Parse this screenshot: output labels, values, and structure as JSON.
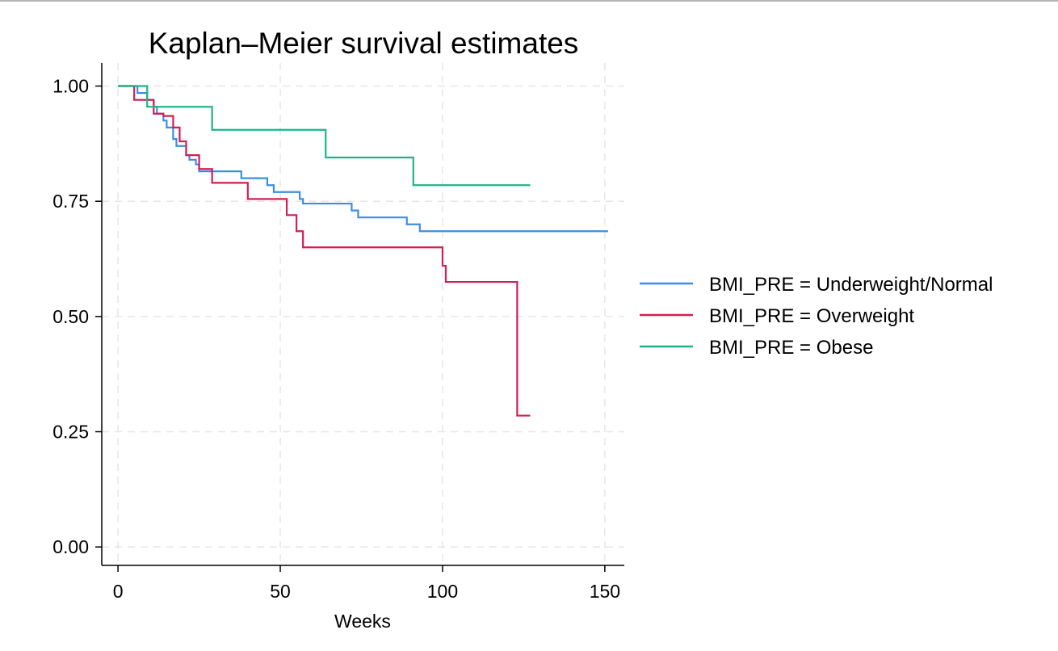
{
  "chart_data": {
    "type": "line",
    "title": "Kaplan–Meier survival estimates",
    "xlabel": "Weeks",
    "ylabel": "",
    "xlim": [
      -5,
      156
    ],
    "ylim": [
      -0.04,
      1.05
    ],
    "xticks": [
      0,
      50,
      100,
      150
    ],
    "xtick_labels": [
      "0",
      "50",
      "100",
      "150"
    ],
    "yticks": [
      0,
      0.25,
      0.5,
      0.75,
      1.0
    ],
    "ytick_labels": [
      "0.00",
      "0.25",
      "0.50",
      "0.75",
      "1.00"
    ],
    "grid": true,
    "step": true,
    "legend_position": "right",
    "series": [
      {
        "name": "BMI_PRE = Underweight/Normal",
        "color": "#3b8ee6",
        "points": [
          [
            0,
            1.0
          ],
          [
            6,
            0.985
          ],
          [
            9,
            0.97
          ],
          [
            11,
            0.955
          ],
          [
            12,
            0.94
          ],
          [
            14,
            0.925
          ],
          [
            15,
            0.91
          ],
          [
            17,
            0.885
          ],
          [
            18,
            0.87
          ],
          [
            21,
            0.85
          ],
          [
            22,
            0.84
          ],
          [
            24,
            0.83
          ],
          [
            25,
            0.815
          ],
          [
            38,
            0.8
          ],
          [
            46,
            0.785
          ],
          [
            48,
            0.77
          ],
          [
            56,
            0.755
          ],
          [
            57,
            0.745
          ],
          [
            72,
            0.73
          ],
          [
            74,
            0.715
          ],
          [
            89,
            0.7
          ],
          [
            93,
            0.685
          ],
          [
            151,
            0.685
          ]
        ]
      },
      {
        "name": "BMI_PRE = Overweight",
        "color": "#d11f55",
        "points": [
          [
            0,
            1.0
          ],
          [
            5,
            0.97
          ],
          [
            8,
            0.97
          ],
          [
            11,
            0.94
          ],
          [
            14,
            0.935
          ],
          [
            17,
            0.91
          ],
          [
            19,
            0.88
          ],
          [
            21,
            0.85
          ],
          [
            25,
            0.82
          ],
          [
            29,
            0.79
          ],
          [
            40,
            0.755
          ],
          [
            52,
            0.72
          ],
          [
            55,
            0.685
          ],
          [
            57,
            0.65
          ],
          [
            100,
            0.61
          ],
          [
            101,
            0.575
          ],
          [
            123,
            0.285
          ],
          [
            127,
            0.285
          ]
        ]
      },
      {
        "name": "BMI_PRE = Obese",
        "color": "#1fb486",
        "points": [
          [
            0,
            1.0
          ],
          [
            9,
            0.955
          ],
          [
            29,
            0.905
          ],
          [
            64,
            0.845
          ],
          [
            91,
            0.785
          ],
          [
            127,
            0.785
          ]
        ]
      }
    ]
  },
  "legend": {
    "items": [
      {
        "label": "BMI_PRE = Underweight/Normal",
        "color": "#3b8ee6"
      },
      {
        "label": "BMI_PRE = Overweight",
        "color": "#d11f55"
      },
      {
        "label": "BMI_PRE = Obese",
        "color": "#1fb486"
      }
    ]
  }
}
